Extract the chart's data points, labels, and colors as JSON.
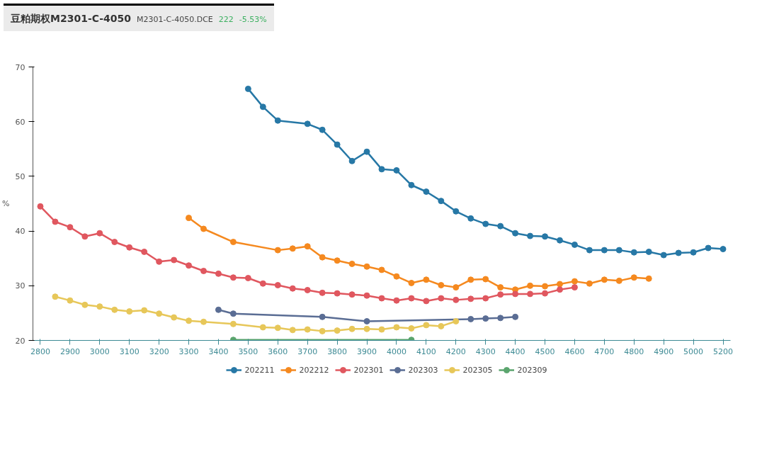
{
  "chart_data": {
    "type": "line",
    "title": "豆粕期权M2301-C-4050",
    "subtitle": "M2301-C-4050.DCE",
    "annotations": [
      "222",
      "-5.53%"
    ],
    "ylabel": "%",
    "categories": [
      "2800",
      null,
      "2900",
      null,
      "3000",
      null,
      "3100",
      null,
      "3200",
      null,
      "3300",
      null,
      "3400",
      null,
      "3500",
      null,
      "3600",
      null,
      "3700",
      null,
      "3800",
      null,
      "3900",
      null,
      "4000",
      null,
      "4100",
      null,
      "4200",
      null,
      "4300",
      null,
      "4400",
      null,
      "4500",
      null,
      "4600",
      null,
      "4700",
      null,
      "4800",
      null,
      "4900",
      null,
      "5000",
      null,
      "5200"
    ],
    "ylim": [
      20,
      70
    ],
    "yticks": [
      20,
      30,
      40,
      50,
      60,
      70
    ],
    "grid": false,
    "legend": "bottom",
    "marker": "circle",
    "line_style": "solid",
    "series": [
      {
        "name": "202211",
        "color": "#2778a6",
        "values": [
          null,
          null,
          null,
          null,
          null,
          null,
          null,
          null,
          null,
          null,
          null,
          null,
          null,
          null,
          66.0,
          62.7,
          60.2,
          null,
          59.6,
          58.5,
          55.8,
          52.8,
          54.5,
          51.3,
          51.1,
          48.4,
          47.2,
          45.5,
          43.6,
          42.3,
          41.3,
          40.9,
          39.6,
          39.1,
          39.0,
          38.3,
          37.5,
          36.5,
          36.5,
          36.5,
          36.1,
          36.2,
          35.6,
          36.0,
          36.1,
          36.9,
          36.7
        ]
      },
      {
        "name": "202212",
        "color": "#f5891f",
        "values": [
          null,
          null,
          null,
          null,
          null,
          null,
          null,
          null,
          null,
          null,
          42.4,
          40.4,
          null,
          38.0,
          null,
          null,
          36.5,
          36.8,
          37.2,
          35.2,
          34.6,
          34.0,
          33.5,
          32.9,
          31.7,
          30.5,
          31.1,
          30.1,
          29.7,
          31.1,
          31.2,
          29.7,
          29.3,
          30.0,
          29.9,
          30.3,
          30.8,
          30.4,
          31.1,
          30.9,
          31.5,
          31.3,
          null,
          null,
          null,
          null,
          null
        ]
      },
      {
        "name": "202301",
        "color": "#e0575f",
        "values": [
          44.5,
          41.7,
          40.7,
          39.0,
          39.6,
          38.0,
          37.0,
          36.2,
          34.4,
          34.7,
          33.7,
          32.7,
          32.2,
          31.5,
          31.4,
          30.4,
          30.1,
          29.5,
          29.2,
          28.7,
          28.6,
          28.4,
          28.2,
          27.7,
          27.3,
          27.7,
          27.2,
          27.7,
          27.4,
          27.6,
          27.7,
          28.4,
          28.5,
          28.5,
          28.6,
          29.3,
          29.7,
          null,
          null,
          null,
          null,
          null,
          null,
          null,
          null,
          null,
          null
        ]
      },
      {
        "name": "202303",
        "color": "#5a6d94",
        "values": [
          null,
          null,
          null,
          null,
          null,
          null,
          null,
          null,
          null,
          null,
          null,
          null,
          25.6,
          24.9,
          null,
          null,
          null,
          null,
          null,
          24.3,
          null,
          null,
          23.5,
          null,
          null,
          null,
          null,
          null,
          null,
          23.9,
          24.0,
          24.1,
          24.3,
          null,
          null,
          null,
          null,
          null,
          null,
          null,
          null,
          null,
          null,
          null,
          null,
          null,
          null
        ]
      },
      {
        "name": "202305",
        "color": "#e7c759",
        "values": [
          null,
          28.0,
          27.3,
          26.5,
          26.2,
          25.6,
          25.3,
          25.5,
          24.9,
          24.2,
          23.6,
          23.4,
          null,
          23.0,
          null,
          22.4,
          22.3,
          21.9,
          22.0,
          21.7,
          21.8,
          22.1,
          22.1,
          22.0,
          22.4,
          22.2,
          22.8,
          22.6,
          23.5,
          null,
          null,
          null,
          null,
          null,
          null,
          null,
          null,
          null,
          null,
          null,
          null,
          null,
          null,
          null,
          null,
          null,
          null
        ]
      },
      {
        "name": "202309",
        "color": "#5ba56e",
        "values": [
          null,
          null,
          null,
          null,
          null,
          null,
          null,
          null,
          null,
          null,
          null,
          null,
          null,
          20.1,
          null,
          null,
          null,
          null,
          null,
          null,
          null,
          null,
          null,
          null,
          null,
          20.1,
          null,
          null,
          null,
          null,
          null,
          null,
          null,
          null,
          null,
          null,
          null,
          null,
          null,
          null,
          null,
          null,
          null,
          null,
          null,
          null,
          null
        ]
      }
    ]
  }
}
